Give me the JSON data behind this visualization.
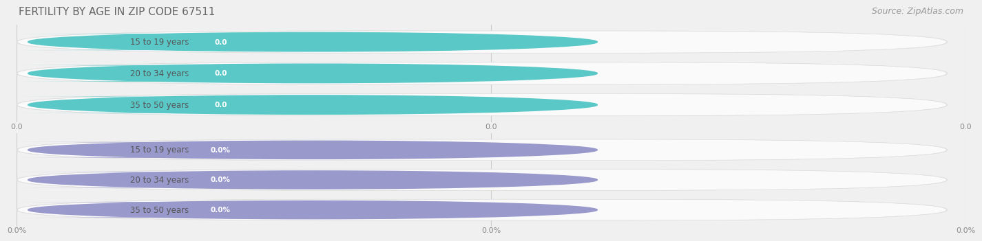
{
  "title": "FERTILITY BY AGE IN ZIP CODE 67511",
  "title_fontsize": 11,
  "title_color": "#666666",
  "source_text": "Source: ZipAtlas.com",
  "source_fontsize": 9,
  "source_color": "#999999",
  "background_color": "#f0f0f0",
  "bar_bg_color": "#fafafa",
  "bar_edge_color": "#e0e0e0",
  "group1_circle_color": "#5bc8c8",
  "group2_circle_color": "#9999cc",
  "group1_badge_color": "#5bc8c8",
  "group2_badge_color": "#9999cc",
  "categories": [
    "15 to 19 years",
    "20 to 34 years",
    "35 to 50 years"
  ],
  "group1_labels": [
    "0.0",
    "0.0",
    "0.0"
  ],
  "group2_labels": [
    "0.0%",
    "0.0%",
    "0.0%"
  ],
  "xtick_labels_group1": [
    "0.0",
    "0.0",
    "0.0"
  ],
  "xtick_labels_group2": [
    "0.0%",
    "0.0%",
    "0.0%"
  ],
  "fig_width": 14.06,
  "fig_height": 3.3,
  "label_text_color": "#555555",
  "tick_color": "#888888"
}
